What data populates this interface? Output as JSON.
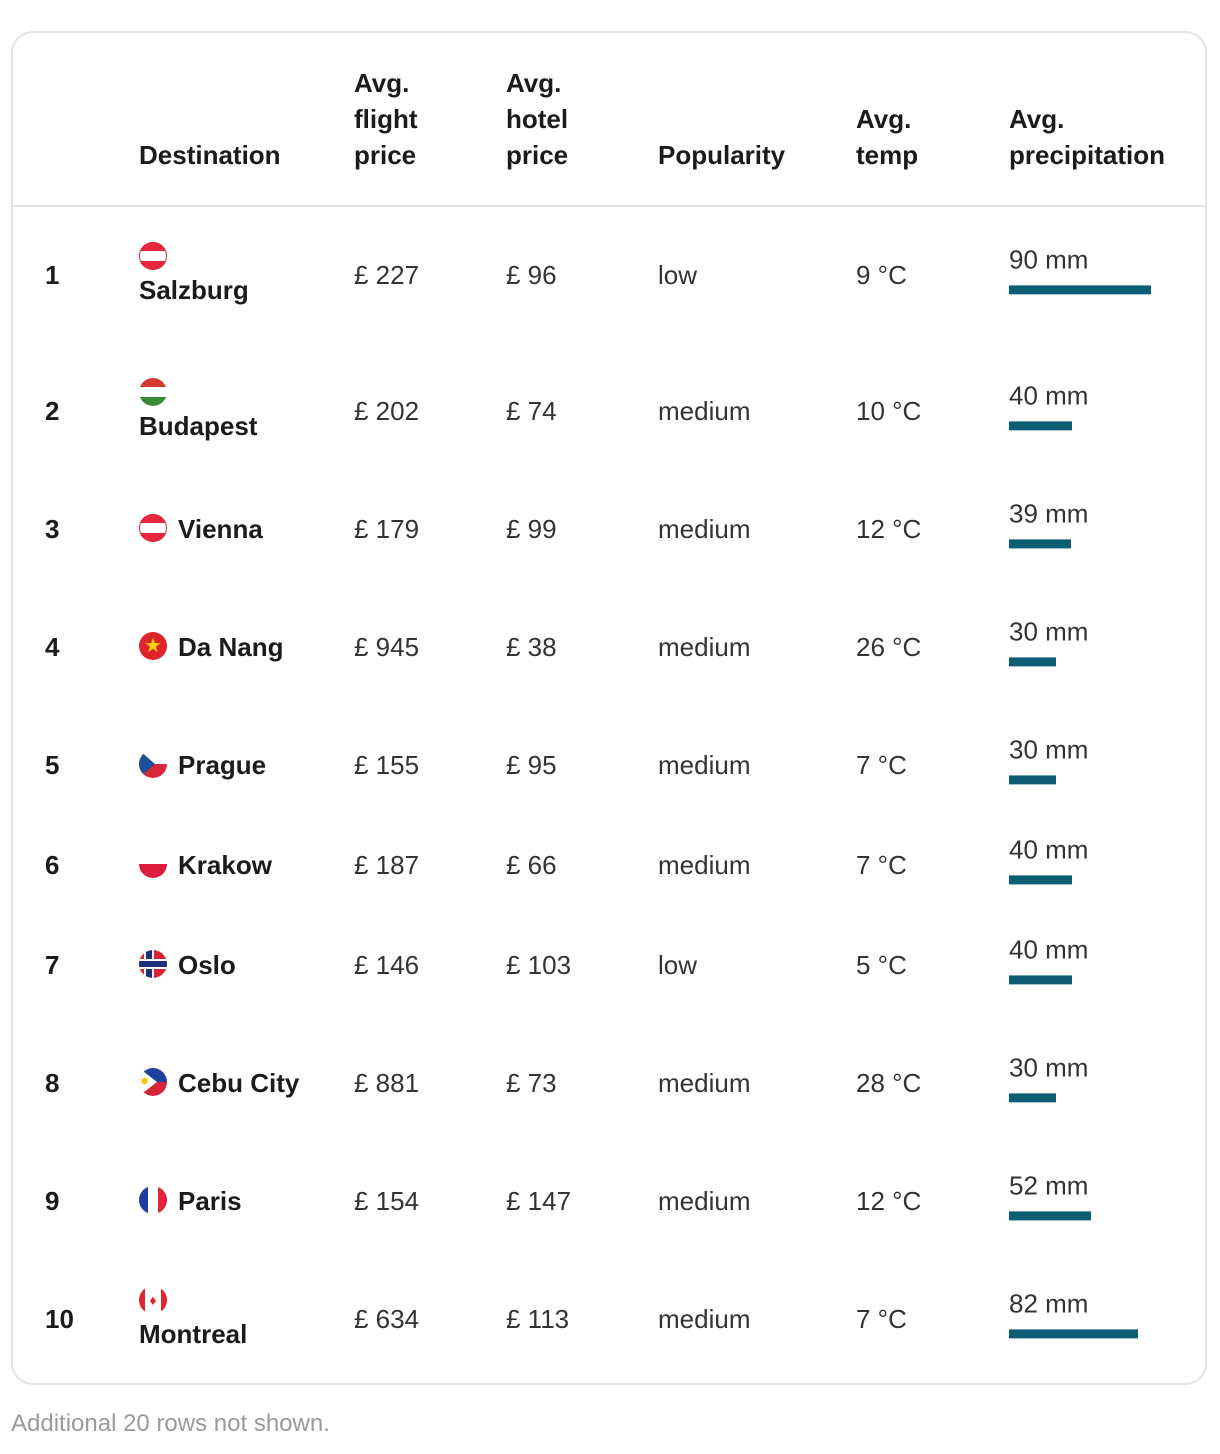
{
  "table": {
    "headers": {
      "destination": "Destination",
      "flight": "Avg.\nflight\nprice",
      "hotel": "Avg.\nhotel\nprice",
      "popularity": "Popularity",
      "temp": "Avg.\ntemp",
      "precipitation": "Avg.\nprecipitation"
    },
    "rows": [
      {
        "rank": "1",
        "name": "Salzburg",
        "flag_icon": "austria-flag-icon",
        "flight": "£ 227",
        "hotel": "£ 96",
        "popularity": "low",
        "temp": "9 °C",
        "precip": "90 mm",
        "precip_value": 90
      },
      {
        "rank": "2",
        "name": "Budapest",
        "flag_icon": "hungary-flag-icon",
        "flight": "£ 202",
        "hotel": "£ 74",
        "popularity": "medium",
        "temp": "10 °C",
        "precip": "40 mm",
        "precip_value": 40
      },
      {
        "rank": "3",
        "name": "Vienna",
        "flag_icon": "austria-flag-icon",
        "flight": "£ 179",
        "hotel": "£ 99",
        "popularity": "medium",
        "temp": "12 °C",
        "precip": "39 mm",
        "precip_value": 39
      },
      {
        "rank": "4",
        "name": "Da Nang",
        "flag_icon": "vietnam-flag-icon",
        "flight": "£ 945",
        "hotel": "£ 38",
        "popularity": "medium",
        "temp": "26 °C",
        "precip": "30 mm",
        "precip_value": 30
      },
      {
        "rank": "5",
        "name": "Prague",
        "flag_icon": "czechia-flag-icon",
        "flight": "£ 155",
        "hotel": "£ 95",
        "popularity": "medium",
        "temp": "7 °C",
        "precip": "30 mm",
        "precip_value": 30
      },
      {
        "rank": "6",
        "name": "Krakow",
        "flag_icon": "poland-flag-icon",
        "flight": "£ 187",
        "hotel": "£ 66",
        "popularity": "medium",
        "temp": "7 °C",
        "precip": "40 mm",
        "precip_value": 40
      },
      {
        "rank": "7",
        "name": "Oslo",
        "flag_icon": "norway-flag-icon",
        "flight": "£ 146",
        "hotel": "£ 103",
        "popularity": "low",
        "temp": "5 °C",
        "precip": "40 mm",
        "precip_value": 40
      },
      {
        "rank": "8",
        "name": "Cebu City",
        "flag_icon": "philippines-flag-icon",
        "flight": "£ 881",
        "hotel": "£ 73",
        "popularity": "medium",
        "temp": "28 °C",
        "precip": "30 mm",
        "precip_value": 30
      },
      {
        "rank": "9",
        "name": "Paris",
        "flag_icon": "france-flag-icon",
        "flight": "£ 154",
        "hotel": "£ 147",
        "popularity": "medium",
        "temp": "12 °C",
        "precip": "52 mm",
        "precip_value": 52
      },
      {
        "rank": "10",
        "name": "Montreal",
        "flag_icon": "canada-flag-icon",
        "flight": "£ 634",
        "hotel": "£ 113",
        "popularity": "medium",
        "temp": "7 °C",
        "precip": "82 mm",
        "precip_value": 82
      }
    ],
    "precip_max": 90,
    "bar_color": "#0d5e72"
  },
  "footnote": "Additional 20 rows not shown."
}
